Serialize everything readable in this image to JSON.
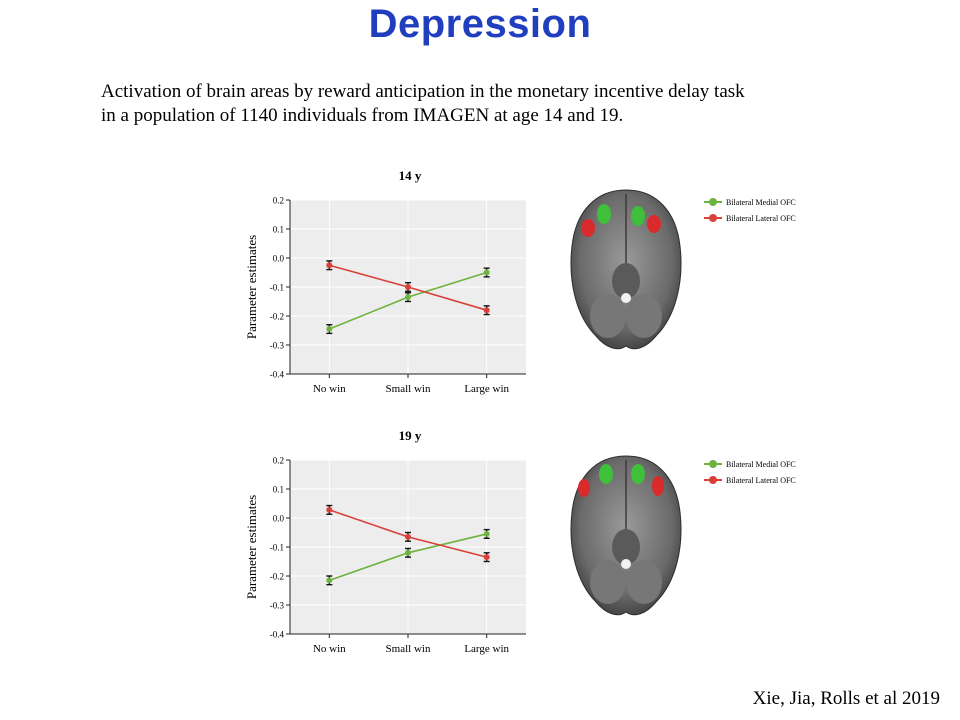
{
  "slide": {
    "title": "Depression",
    "description_line1": "Activation of brain areas by reward anticipation in the monetary incentive delay task",
    "description_line2": "in a population of 1140 individuals from IMAGEN at age 14 and 19.",
    "citation": "Xie, Jia, Rolls et al 2019"
  },
  "legend": {
    "medial": {
      "label": "Bilateral Medial OFC",
      "color": "#6db33f"
    },
    "lateral": {
      "label": "Bilateral Lateral OFC",
      "color": "#d9403a"
    }
  },
  "chart_data": [
    {
      "type": "line",
      "title": "14 y",
      "xlabel": "",
      "ylabel": "Parameter estimates",
      "categories": [
        "No win",
        "Small win",
        "Large win"
      ],
      "ylim": [
        -0.4,
        0.2
      ],
      "yticks": [
        0.2,
        0.1,
        0.0,
        -0.1,
        -0.2,
        -0.3,
        -0.4
      ],
      "ytick_labels": [
        "0.2",
        "0.1",
        "0.0",
        "-0.1",
        "-0.2",
        "-0.3",
        "-0.4"
      ],
      "grid": true,
      "legend_position": "top-right",
      "series": [
        {
          "name": "Bilateral Medial OFC",
          "color": "#6db33f",
          "values": [
            -0.245,
            -0.135,
            -0.05
          ],
          "error": [
            0.015,
            0.015,
            0.015
          ]
        },
        {
          "name": "Bilateral Lateral OFC",
          "color": "#d9403a",
          "values": [
            -0.025,
            -0.1,
            -0.18
          ],
          "error": [
            0.015,
            0.015,
            0.015
          ]
        }
      ]
    },
    {
      "type": "line",
      "title": "19 y",
      "xlabel": "",
      "ylabel": "Parameter estimates",
      "categories": [
        "No win",
        "Small win",
        "Large win"
      ],
      "ylim": [
        -0.4,
        0.2
      ],
      "yticks": [
        0.2,
        0.1,
        0.0,
        -0.1,
        -0.2,
        -0.3,
        -0.4
      ],
      "ytick_labels": [
        "0.2",
        "0.1",
        "0.0",
        "-0.1",
        "-0.2",
        "-0.3",
        "-0.4"
      ],
      "grid": true,
      "legend_position": "top-right",
      "series": [
        {
          "name": "Bilateral Medial OFC",
          "color": "#6db33f",
          "values": [
            -0.215,
            -0.12,
            -0.055
          ],
          "error": [
            0.015,
            0.015,
            0.015
          ]
        },
        {
          "name": "Bilateral Lateral OFC",
          "color": "#d9403a",
          "values": [
            0.028,
            -0.065,
            -0.135
          ],
          "error": [
            0.015,
            0.015,
            0.015
          ]
        }
      ]
    }
  ]
}
